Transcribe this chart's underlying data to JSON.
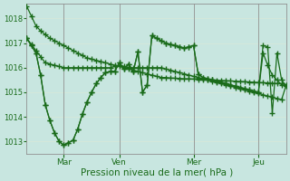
{
  "background_color": "#c8e6e0",
  "grid_color": "#d8e8d8",
  "line_color": "#1a6b1a",
  "marker": "+",
  "markersize": 4,
  "linewidth": 0.9,
  "xlabel": "Pression niveau de la mer( hPa )",
  "xlabel_fontsize": 7.5,
  "ylim": [
    1012.5,
    1018.6
  ],
  "yticks": [
    1013,
    1014,
    1015,
    1016,
    1017,
    1018
  ],
  "ytick_fontsize": 6,
  "xtick_fontsize": 6.5,
  "xtick_labels": [
    "Mar",
    "Ven",
    "Mer",
    "Jeu"
  ],
  "xtick_positions": [
    8,
    20,
    36,
    50
  ],
  "vline_positions": [
    8,
    20,
    36,
    50
  ],
  "n_points": 57,
  "series": [
    [
      1018.5,
      1018.1,
      1017.7,
      1017.5,
      1017.35,
      1017.2,
      1017.1,
      1017.0,
      1016.9,
      1016.8,
      1016.7,
      1016.6,
      1016.5,
      1016.4,
      1016.35,
      1016.3,
      1016.25,
      1016.2,
      1016.15,
      1016.1,
      1016.05,
      1016.0,
      1015.95,
      1015.9,
      1015.85,
      1015.8,
      1015.75,
      1015.7,
      1015.65,
      1015.6,
      1015.6,
      1015.58,
      1015.57,
      1015.56,
      1015.55,
      1015.55,
      1015.54,
      1015.53,
      1015.52,
      1015.51,
      1015.5,
      1015.49,
      1015.48,
      1015.47,
      1015.46,
      1015.45,
      1015.44,
      1015.43,
      1015.42,
      1015.41,
      1015.4,
      1015.39,
      1015.38,
      1015.37,
      1015.36,
      1015.35,
      1015.3
    ],
    [
      1017.2,
      1016.95,
      1016.7,
      1016.45,
      1016.2,
      1016.15,
      1016.1,
      1016.05,
      1016.0,
      1016.0,
      1016.0,
      1016.0,
      1016.0,
      1016.0,
      1016.0,
      1016.0,
      1016.0,
      1016.0,
      1016.0,
      1016.05,
      1016.1,
      1016.05,
      1016.0,
      1016.0,
      1016.0,
      1016.0,
      1016.0,
      1016.0,
      1016.0,
      1016.0,
      1015.95,
      1015.9,
      1015.85,
      1015.8,
      1015.75,
      1015.7,
      1015.65,
      1015.6,
      1015.55,
      1015.5,
      1015.45,
      1015.4,
      1015.35,
      1015.3,
      1015.25,
      1015.2,
      1015.15,
      1015.1,
      1015.05,
      1015.0,
      1014.95,
      1014.9,
      1014.85,
      1014.8,
      1014.75,
      1014.7,
      1015.3
    ],
    [
      1017.2,
      1016.9,
      1016.6,
      1015.7,
      1014.5,
      1013.85,
      1013.35,
      1013.0,
      1012.85,
      1012.95,
      1013.05,
      1013.5,
      1014.1,
      1014.6,
      1015.0,
      1015.35,
      1015.6,
      1015.8,
      1015.85,
      1015.85,
      1016.2,
      1015.95,
      1016.15,
      1015.85,
      1016.65,
      1015.0,
      1015.3,
      1017.3,
      1017.2,
      1017.1,
      1017.0,
      1016.95,
      1016.9,
      1016.85,
      1016.8,
      1016.85,
      1016.9,
      1015.75,
      1015.6,
      1015.55,
      1015.5,
      1015.45,
      1015.4,
      1015.35,
      1015.3,
      1015.25,
      1015.2,
      1015.15,
      1015.1,
      1015.05,
      1015.0,
      1016.6,
      1016.1,
      1015.7,
      1015.5,
      1015.3,
      1015.25
    ],
    [
      1017.2,
      1016.9,
      1016.6,
      1015.7,
      1014.5,
      1013.85,
      1013.35,
      1013.0,
      1012.85,
      1012.95,
      1013.05,
      1013.5,
      1014.1,
      1014.6,
      1015.0,
      1015.35,
      1015.6,
      1015.8,
      1015.85,
      1015.85,
      1016.2,
      1015.95,
      1016.15,
      1015.85,
      1016.65,
      1015.0,
      1015.3,
      1017.3,
      1017.2,
      1017.1,
      1017.0,
      1016.95,
      1016.9,
      1016.85,
      1016.8,
      1016.85,
      1016.9,
      1015.75,
      1015.6,
      1015.55,
      1015.5,
      1015.45,
      1015.4,
      1015.35,
      1015.3,
      1015.25,
      1015.2,
      1015.15,
      1015.1,
      1015.05,
      1015.0,
      1016.9,
      1016.85,
      1014.15,
      1016.6,
      1015.5,
      1015.25
    ]
  ]
}
